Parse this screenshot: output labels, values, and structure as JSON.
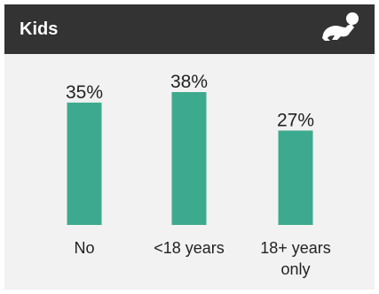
{
  "header": {
    "title": "Kids",
    "icon": "crawling-baby-icon"
  },
  "colors": {
    "header_bg": "#333333",
    "panel_bg": "#f2f2f2",
    "bar": "#3daa8f"
  },
  "chart_data": {
    "type": "bar",
    "title": "",
    "xlabel": "",
    "ylabel": "",
    "ylim": [
      0,
      45
    ],
    "categories": [
      "No",
      "<18 years",
      "18+ years only"
    ],
    "category_lines": [
      [
        "No"
      ],
      [
        "<18 years"
      ],
      [
        "18+ years",
        "only"
      ]
    ],
    "values": [
      35,
      38,
      27
    ],
    "labels": [
      "35%",
      "38%",
      "27%"
    ],
    "unit": "%",
    "grid": false,
    "legend": "none"
  }
}
